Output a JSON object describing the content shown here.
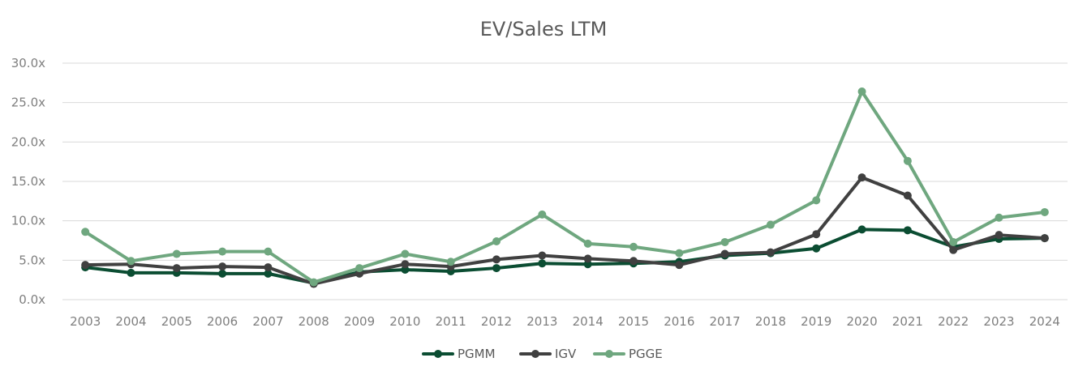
{
  "chart_data": {
    "type": "line",
    "title": "EV/Sales LTM",
    "categories": [
      "2003",
      "2004",
      "2005",
      "2006",
      "2007",
      "2008",
      "2009",
      "2010",
      "2011",
      "2012",
      "2013",
      "2014",
      "2015",
      "2016",
      "2017",
      "2018",
      "2019",
      "2020",
      "2021",
      "2022",
      "2023",
      "2024"
    ],
    "ylim": [
      0,
      30
    ],
    "yticks": [
      0,
      5,
      10,
      15,
      20,
      25,
      30
    ],
    "ytick_labels": [
      "0.0x",
      "5.0x",
      "10.0x",
      "15.0x",
      "20.0x",
      "25.0x",
      "30.0x"
    ],
    "grid": true,
    "legend_position": "bottom",
    "xlabel": "",
    "ylabel": "",
    "series": [
      {
        "name": "PGMM",
        "color": "#0b4d32",
        "values": [
          4.1,
          3.4,
          3.4,
          3.3,
          3.3,
          2.1,
          3.5,
          3.8,
          3.6,
          4.0,
          4.6,
          4.5,
          4.6,
          4.8,
          5.6,
          5.9,
          6.5,
          8.9,
          8.8,
          6.7,
          7.7,
          7.8
        ]
      },
      {
        "name": "IGV",
        "color": "#404040",
        "values": [
          4.4,
          4.5,
          4.0,
          4.2,
          4.1,
          2.0,
          3.3,
          4.5,
          4.2,
          5.1,
          5.6,
          5.2,
          4.9,
          4.4,
          5.8,
          6.0,
          8.3,
          15.5,
          13.2,
          6.3,
          8.2,
          7.8
        ]
      },
      {
        "name": "PGGE",
        "color": "#6fa77f",
        "values": [
          8.6,
          4.9,
          5.8,
          6.1,
          6.1,
          2.2,
          4.0,
          5.8,
          4.8,
          7.4,
          10.8,
          7.1,
          6.7,
          5.9,
          7.3,
          9.5,
          12.6,
          26.4,
          17.6,
          7.3,
          10.4,
          11.1
        ]
      }
    ]
  }
}
